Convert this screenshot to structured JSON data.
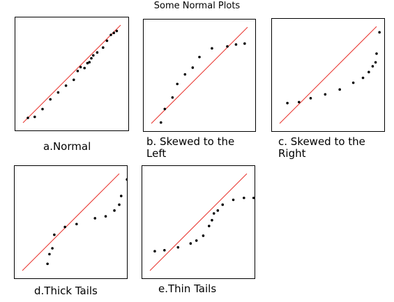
{
  "title": "Some Normal Plots",
  "chart_data": [
    {
      "type": "scatter",
      "caption": "a.Normal",
      "reference_line": {
        "color": "#e8302a"
      },
      "point_color": "#000000",
      "x": [
        0.05,
        0.12,
        0.2,
        0.28,
        0.36,
        0.44,
        0.52,
        0.56,
        0.59,
        0.63,
        0.66,
        0.68,
        0.7,
        0.72,
        0.76,
        0.82,
        0.86,
        0.9,
        0.93,
        0.96
      ],
      "y": [
        0.05,
        0.06,
        0.14,
        0.24,
        0.31,
        0.38,
        0.44,
        0.53,
        0.57,
        0.56,
        0.61,
        0.62,
        0.66,
        0.69,
        0.72,
        0.77,
        0.84,
        0.9,
        0.92,
        0.94
      ]
    },
    {
      "type": "scatter",
      "caption": "b. Skewed to the\nLeft",
      "reference_line": {
        "color": "#e8302a"
      },
      "point_color": "#000000",
      "x": [
        0.1,
        0.14,
        0.22,
        0.27,
        0.35,
        0.43,
        0.5,
        0.63,
        0.79,
        0.88,
        0.97
      ],
      "y": [
        0.01,
        0.15,
        0.27,
        0.41,
        0.51,
        0.58,
        0.69,
        0.78,
        0.8,
        0.82,
        0.83
      ]
    },
    {
      "type": "scatter",
      "caption": "c. Skewed to the\nRight",
      "reference_line": {
        "color": "#e8302a"
      },
      "point_color": "#000000",
      "x": [
        0.08,
        0.2,
        0.32,
        0.47,
        0.62,
        0.76,
        0.86,
        0.92,
        0.96,
        0.99,
        1.0,
        1.03
      ],
      "y": [
        0.21,
        0.22,
        0.26,
        0.3,
        0.35,
        0.42,
        0.47,
        0.53,
        0.59,
        0.63,
        0.72,
        0.94
      ]
    },
    {
      "type": "scatter",
      "caption": "d.Thick Tails",
      "reference_line": {
        "color": "#e8302a"
      },
      "point_color": "#000000",
      "x": [
        0.26,
        0.28,
        0.31,
        0.33,
        0.44,
        0.56,
        0.75,
        0.86,
        0.95,
        1.0,
        1.02,
        1.08,
        1.12
      ],
      "y": [
        0.07,
        0.17,
        0.23,
        0.37,
        0.45,
        0.48,
        0.54,
        0.56,
        0.62,
        0.68,
        0.77,
        0.94,
        0.99
      ]
    },
    {
      "type": "scatter",
      "caption": "e.Thin Tails",
      "reference_line": {
        "color": "#e8302a"
      },
      "point_color": "#000000",
      "x": [
        0.05,
        0.15,
        0.29,
        0.42,
        0.48,
        0.55,
        0.61,
        0.64,
        0.66,
        0.7,
        0.75,
        0.86,
        0.97,
        1.07
      ],
      "y": [
        0.2,
        0.21,
        0.24,
        0.28,
        0.31,
        0.36,
        0.46,
        0.52,
        0.59,
        0.62,
        0.68,
        0.73,
        0.75,
        0.75
      ]
    }
  ]
}
